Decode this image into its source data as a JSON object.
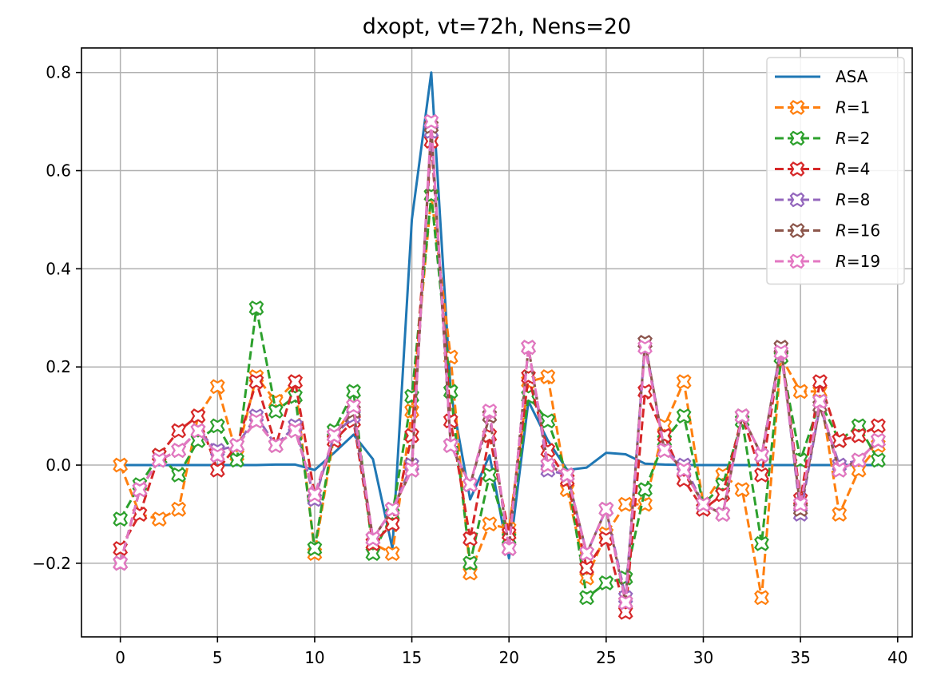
{
  "chart_data": {
    "type": "line",
    "title": "dxopt, vt=72h, Nens=20",
    "xlabel": "",
    "ylabel": "",
    "xlim": [
      -2,
      40.75
    ],
    "ylim": [
      -0.35,
      0.85
    ],
    "xticks": [
      0,
      5,
      10,
      15,
      20,
      25,
      30,
      35,
      40
    ],
    "xtick_labels": [
      "0",
      "5",
      "10",
      "15",
      "20",
      "25",
      "30",
      "35",
      "40"
    ],
    "yticks": [
      -0.2,
      0.0,
      0.2,
      0.4,
      0.6,
      0.8
    ],
    "ytick_labels": [
      "−0.2",
      "0.0",
      "0.2",
      "0.4",
      "0.6",
      "0.8"
    ],
    "grid": true,
    "legend_position": "top-right",
    "x": [
      0,
      1,
      2,
      3,
      4,
      5,
      6,
      7,
      8,
      9,
      10,
      11,
      12,
      13,
      14,
      15,
      16,
      17,
      18,
      19,
      20,
      21,
      22,
      23,
      24,
      25,
      26,
      27,
      28,
      29,
      30,
      31,
      32,
      33,
      34,
      35,
      36,
      37,
      38,
      39
    ],
    "series": [
      {
        "name": "ASA",
        "italic_prefix": "",
        "suffix": "ASA",
        "color": "#1f77b4",
        "style": "solid",
        "marker": "none",
        "values": [
          0,
          0,
          0,
          0,
          0,
          0,
          0,
          0,
          0.001,
          0.001,
          -0.01,
          0.025,
          0.062,
          0.012,
          -0.17,
          0.5,
          0.8,
          0.15,
          -0.07,
          0.02,
          -0.19,
          0.13,
          0.05,
          -0.01,
          -0.005,
          0.025,
          0.022,
          0.003,
          0.001,
          0,
          0,
          0,
          0,
          0,
          0,
          0,
          0,
          0,
          0,
          0
        ]
      },
      {
        "name": "R=1",
        "italic_prefix": "R",
        "suffix": "=1",
        "color": "#ff7f0e",
        "style": "dashed",
        "marker": "x",
        "values": [
          0,
          -0.1,
          -0.11,
          -0.09,
          0.1,
          0.16,
          0.02,
          0.18,
          0.13,
          0.17,
          -0.18,
          0.06,
          0.12,
          -0.16,
          -0.18,
          0.11,
          0.55,
          0.22,
          -0.22,
          -0.12,
          -0.13,
          0.17,
          0.18,
          -0.05,
          -0.23,
          -0.14,
          -0.08,
          -0.08,
          0.08,
          0.17,
          -0.08,
          -0.02,
          -0.05,
          -0.27,
          0.22,
          0.15,
          0.15,
          -0.1,
          -0.01,
          0.04
        ]
      },
      {
        "name": "R=2",
        "italic_prefix": "R",
        "suffix": "=2",
        "color": "#2ca02c",
        "style": "dashed",
        "marker": "x",
        "values": [
          -0.11,
          -0.04,
          0.02,
          -0.02,
          0.05,
          0.08,
          0.01,
          0.32,
          0.11,
          0.14,
          -0.17,
          0.07,
          0.15,
          -0.18,
          -0.1,
          0.14,
          0.55,
          0.15,
          -0.2,
          -0.02,
          -0.15,
          0.14,
          0.09,
          -0.02,
          -0.27,
          -0.24,
          -0.23,
          -0.05,
          0.05,
          0.1,
          -0.08,
          -0.04,
          0.09,
          -0.16,
          0.22,
          0.01,
          0.13,
          0.05,
          0.08,
          0.01
        ]
      },
      {
        "name": "R=4",
        "italic_prefix": "R",
        "suffix": "=4",
        "color": "#d62728",
        "style": "dashed",
        "marker": "x",
        "values": [
          -0.17,
          -0.1,
          0.02,
          0.07,
          0.1,
          -0.01,
          0.04,
          0.17,
          0.04,
          0.17,
          -0.06,
          0.05,
          0.09,
          -0.16,
          -0.12,
          0.06,
          0.66,
          0.09,
          -0.15,
          0.06,
          -0.14,
          0.18,
          0.03,
          -0.03,
          -0.21,
          -0.15,
          -0.3,
          0.15,
          0.06,
          -0.03,
          -0.09,
          -0.06,
          0.1,
          -0.02,
          0.24,
          -0.07,
          0.17,
          0.05,
          0.06,
          0.08
        ]
      },
      {
        "name": "R=8",
        "italic_prefix": "R",
        "suffix": "=8",
        "color": "#9467bd",
        "style": "dashed",
        "marker": "x",
        "values": [
          -0.2,
          -0.05,
          0.01,
          0.03,
          0.07,
          0.03,
          0.04,
          0.1,
          0.04,
          0.08,
          -0.07,
          0.06,
          0.1,
          -0.15,
          -0.09,
          0,
          0.68,
          0.04,
          -0.04,
          0.1,
          -0.17,
          0.24,
          -0.01,
          -0.02,
          -0.18,
          -0.09,
          -0.27,
          0.25,
          0.03,
          0,
          -0.08,
          -0.1,
          0.1,
          0.02,
          0.24,
          -0.1,
          0.12,
          0,
          0.01,
          0.05
        ]
      },
      {
        "name": "R=16",
        "italic_prefix": "R",
        "suffix": "=16",
        "color": "#8c564b",
        "style": "dashed",
        "marker": "x",
        "values": [
          -0.2,
          -0.05,
          0.01,
          0.03,
          0.07,
          0.02,
          0.04,
          0.09,
          0.04,
          0.07,
          -0.06,
          0.06,
          0.11,
          -0.15,
          -0.09,
          -0.01,
          0.69,
          0.04,
          -0.04,
          0.1,
          -0.17,
          0.24,
          0,
          -0.02,
          -0.18,
          -0.09,
          -0.28,
          0.25,
          0.03,
          -0.01,
          -0.08,
          -0.1,
          0.1,
          0.02,
          0.24,
          -0.09,
          0.12,
          -0.01,
          0.01,
          0.05
        ]
      },
      {
        "name": "R=19",
        "italic_prefix": "R",
        "suffix": "=19",
        "color": "#e377c2",
        "style": "dashed",
        "marker": "x",
        "values": [
          -0.2,
          -0.05,
          0.01,
          0.03,
          0.07,
          0.02,
          0.04,
          0.09,
          0.04,
          0.07,
          -0.06,
          0.06,
          0.12,
          -0.15,
          -0.09,
          -0.01,
          0.7,
          0.04,
          -0.04,
          0.11,
          -0.17,
          0.24,
          0,
          -0.02,
          -0.18,
          -0.09,
          -0.28,
          0.24,
          0.03,
          -0.01,
          -0.08,
          -0.1,
          0.1,
          0.02,
          0.23,
          -0.08,
          0.13,
          -0.01,
          0.01,
          0.05
        ]
      }
    ]
  }
}
